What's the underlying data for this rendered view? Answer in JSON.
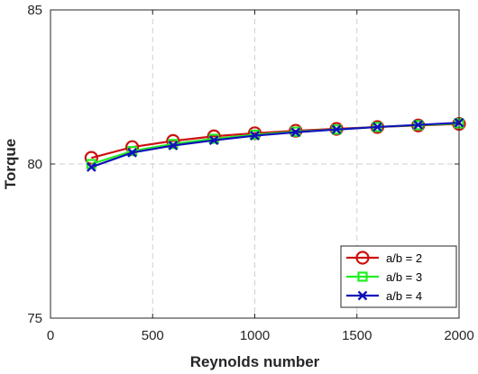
{
  "chart_data": {
    "type": "line",
    "title": "",
    "xlabel": "Reynolds number",
    "ylabel": "Torque",
    "xlim": [
      0,
      2000
    ],
    "ylim": [
      75,
      85
    ],
    "xticks": [
      0,
      500,
      1000,
      1500,
      2000
    ],
    "yticks": [
      75,
      80,
      85
    ],
    "xtick_labels": [
      "0",
      "500",
      "1000",
      "1500",
      "2000"
    ],
    "ytick_labels": [
      "75",
      "80",
      "85"
    ],
    "grid": true,
    "legend_position": "bottom-right",
    "x": [
      200,
      400,
      600,
      800,
      1000,
      1200,
      1400,
      1600,
      1800,
      2000
    ],
    "series": [
      {
        "name": "a/b = 2",
        "color": "#cc1111",
        "marker": "circle",
        "values": [
          80.2,
          80.55,
          80.75,
          80.9,
          81.0,
          81.08,
          81.14,
          81.2,
          81.25,
          81.3
        ]
      },
      {
        "name": "a/b = 3",
        "color": "#22ee22",
        "marker": "square",
        "values": [
          80.0,
          80.42,
          80.65,
          80.82,
          80.95,
          81.05,
          81.12,
          81.2,
          81.26,
          81.32
        ]
      },
      {
        "name": "a/b = 4",
        "color": "#1111bb",
        "marker": "x",
        "values": [
          79.9,
          80.37,
          80.6,
          80.77,
          80.92,
          81.03,
          81.12,
          81.2,
          81.27,
          81.34
        ]
      }
    ]
  }
}
